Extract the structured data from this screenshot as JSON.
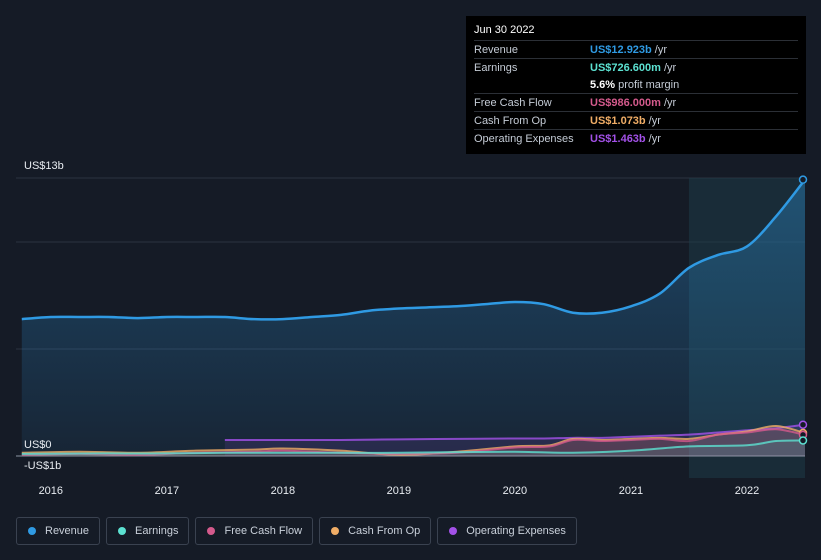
{
  "tooltip": {
    "date": "Jun 30 2022",
    "rows": [
      {
        "label": "Revenue",
        "value": "US$12.923b",
        "unit": "/yr",
        "color": "#2f9ae3"
      },
      {
        "label": "Earnings",
        "value": "US$726.600m",
        "unit": "/yr",
        "color": "#5ce1d1"
      },
      {
        "label": "",
        "value": "5.6%",
        "unit": "profit margin",
        "color": "#ffffff"
      },
      {
        "label": "Free Cash Flow",
        "value": "US$986.000m",
        "unit": "/yr",
        "color": "#d45a8c"
      },
      {
        "label": "Cash From Op",
        "value": "US$1.073b",
        "unit": "/yr",
        "color": "#f0ad66"
      },
      {
        "label": "Operating Expenses",
        "value": "US$1.463b",
        "unit": "/yr",
        "color": "#a351e8"
      }
    ]
  },
  "legend": [
    {
      "label": "Revenue",
      "color": "#2f9ae3"
    },
    {
      "label": "Earnings",
      "color": "#5ce1d1"
    },
    {
      "label": "Free Cash Flow",
      "color": "#d45a8c"
    },
    {
      "label": "Cash From Op",
      "color": "#f0ad66"
    },
    {
      "label": "Operating Expenses",
      "color": "#a351e8"
    }
  ],
  "chart_data": {
    "type": "area",
    "ylim": [
      -1,
      13
    ],
    "y_tick_labels": {
      "top": "US$13b",
      "zero": "US$0",
      "bottom": "-US$1b"
    },
    "x_tick_labels": [
      "2016",
      "2017",
      "2018",
      "2019",
      "2020",
      "2021",
      "2022"
    ],
    "x_tick_values": [
      2016,
      2017,
      2018,
      2019,
      2020,
      2021,
      2022
    ],
    "x_range": [
      2015.7,
      2022.5
    ],
    "highlight_start": 2021.5,
    "series": [
      {
        "name": "Revenue",
        "color": "#2f9ae3",
        "x": [
          2015.75,
          2016.0,
          2016.25,
          2016.5,
          2016.75,
          2017.0,
          2017.25,
          2017.5,
          2017.75,
          2018.0,
          2018.25,
          2018.5,
          2018.75,
          2019.0,
          2019.25,
          2019.5,
          2019.75,
          2020.0,
          2020.25,
          2020.5,
          2020.75,
          2021.0,
          2021.25,
          2021.5,
          2021.75,
          2022.0,
          2022.25,
          2022.5
        ],
        "y": [
          6.4,
          6.5,
          6.5,
          6.5,
          6.45,
          6.5,
          6.5,
          6.5,
          6.4,
          6.4,
          6.5,
          6.6,
          6.8,
          6.9,
          6.95,
          7.0,
          7.1,
          7.2,
          7.1,
          6.7,
          6.7,
          7.0,
          7.6,
          8.8,
          9.4,
          9.8,
          11.2,
          12.923
        ]
      },
      {
        "name": "Earnings",
        "color": "#5ce1d1",
        "x": [
          2015.75,
          2016.5,
          2017.0,
          2017.5,
          2018.0,
          2018.5,
          2019.0,
          2019.5,
          2020.0,
          2020.5,
          2021.0,
          2021.5,
          2022.0,
          2022.25,
          2022.5
        ],
        "y": [
          0.1,
          0.12,
          0.12,
          0.15,
          0.15,
          0.15,
          0.15,
          0.18,
          0.2,
          0.15,
          0.25,
          0.45,
          0.5,
          0.7,
          0.7266
        ]
      },
      {
        "name": "Free Cash Flow",
        "color": "#d45a8c",
        "x": [
          2015.75,
          2016.25,
          2016.75,
          2017.25,
          2017.75,
          2018.0,
          2018.5,
          2019.0,
          2019.5,
          2020.0,
          2020.3,
          2020.5,
          2020.75,
          2021.0,
          2021.25,
          2021.5,
          2021.75,
          2022.0,
          2022.25,
          2022.5
        ],
        "y": [
          0.05,
          0.1,
          0.05,
          0.15,
          0.2,
          0.25,
          0.15,
          0.1,
          0.15,
          0.4,
          0.45,
          0.75,
          0.7,
          0.75,
          0.8,
          0.7,
          1.0,
          1.1,
          1.25,
          0.986
        ]
      },
      {
        "name": "Cash From Op",
        "color": "#f0ad66",
        "x": [
          2015.75,
          2016.25,
          2016.75,
          2017.25,
          2017.75,
          2018.0,
          2018.5,
          2019.0,
          2019.5,
          2020.0,
          2020.3,
          2020.5,
          2020.75,
          2021.0,
          2021.25,
          2021.5,
          2021.75,
          2022.0,
          2022.25,
          2022.5
        ],
        "y": [
          0.15,
          0.2,
          0.15,
          0.25,
          0.3,
          0.35,
          0.25,
          0.05,
          0.2,
          0.45,
          0.5,
          0.8,
          0.75,
          0.8,
          0.85,
          0.8,
          1.0,
          1.15,
          1.4,
          1.073
        ]
      },
      {
        "name": "Operating Expenses",
        "color": "#a351e8",
        "x": [
          2017.5,
          2018.0,
          2018.5,
          2019.0,
          2019.5,
          2020.0,
          2020.25,
          2020.5,
          2020.75,
          2021.0,
          2021.25,
          2021.5,
          2021.75,
          2022.0,
          2022.25,
          2022.5
        ],
        "y": [
          0.75,
          0.75,
          0.75,
          0.78,
          0.8,
          0.82,
          0.82,
          0.85,
          0.85,
          0.9,
          0.95,
          1.0,
          1.1,
          1.2,
          1.3,
          1.463
        ]
      }
    ]
  }
}
